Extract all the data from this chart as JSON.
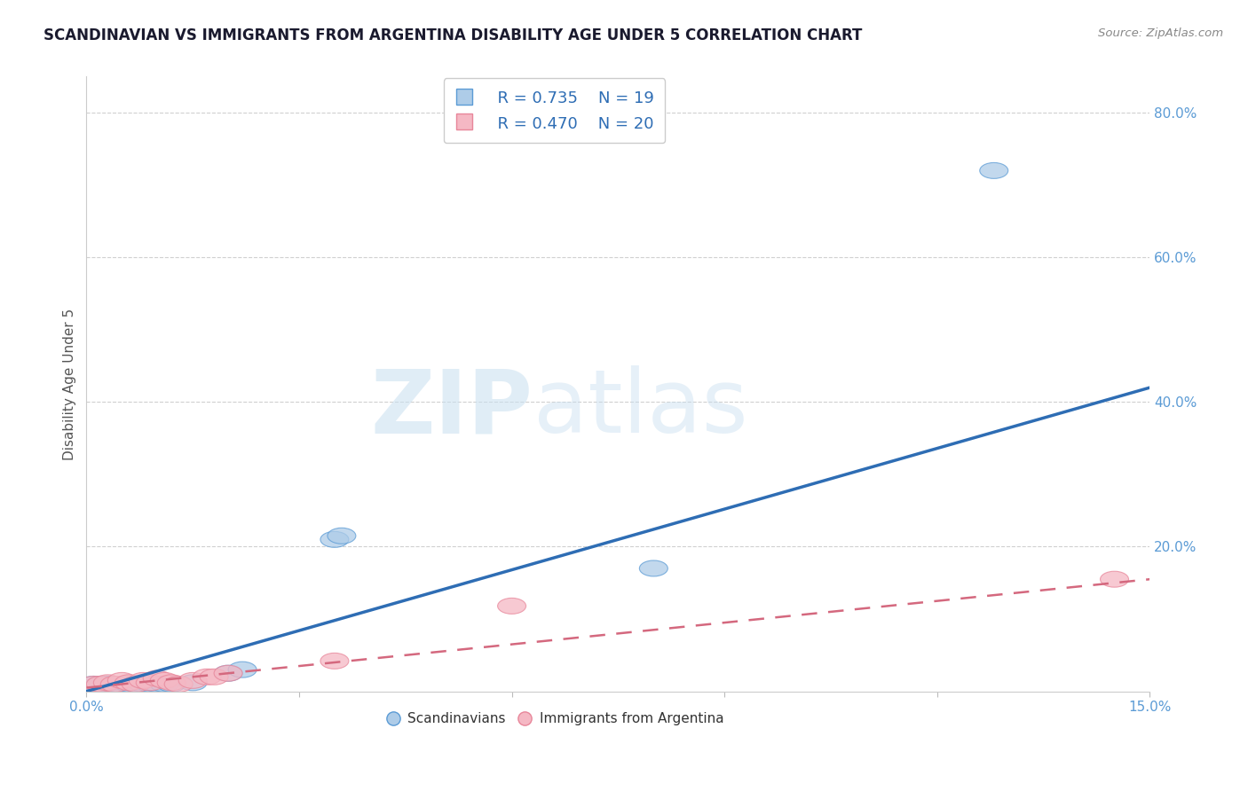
{
  "title": "SCANDINAVIAN VS IMMIGRANTS FROM ARGENTINA DISABILITY AGE UNDER 5 CORRELATION CHART",
  "source": "Source: ZipAtlas.com",
  "ylabel": "Disability Age Under 5",
  "xlim": [
    0.0,
    0.15
  ],
  "ylim": [
    0.0,
    0.85
  ],
  "ytick_labels_right": [
    "20.0%",
    "40.0%",
    "60.0%",
    "80.0%"
  ],
  "ytick_vals_right": [
    0.2,
    0.4,
    0.6,
    0.8
  ],
  "scandinavian_x": [
    0.001,
    0.002,
    0.003,
    0.004,
    0.005,
    0.006,
    0.007,
    0.008,
    0.009,
    0.01,
    0.011,
    0.012,
    0.015,
    0.02,
    0.022,
    0.035,
    0.036,
    0.08,
    0.128
  ],
  "scandinavian_y": [
    0.01,
    0.01,
    0.01,
    0.008,
    0.008,
    0.01,
    0.01,
    0.01,
    0.01,
    0.01,
    0.01,
    0.01,
    0.012,
    0.025,
    0.03,
    0.21,
    0.215,
    0.17,
    0.72
  ],
  "argentina_x": [
    0.001,
    0.002,
    0.003,
    0.004,
    0.005,
    0.006,
    0.007,
    0.008,
    0.009,
    0.01,
    0.011,
    0.012,
    0.013,
    0.015,
    0.017,
    0.018,
    0.02,
    0.035,
    0.06,
    0.145
  ],
  "argentina_y": [
    0.01,
    0.01,
    0.012,
    0.01,
    0.015,
    0.012,
    0.01,
    0.015,
    0.012,
    0.018,
    0.015,
    0.012,
    0.01,
    0.015,
    0.02,
    0.02,
    0.025,
    0.042,
    0.118,
    0.155
  ],
  "blue_line_x": [
    0.0,
    0.15
  ],
  "blue_line_y": [
    0.0,
    0.42
  ],
  "pink_line_x": [
    0.0,
    0.15
  ],
  "pink_line_y": [
    0.005,
    0.155
  ],
  "blue_color": "#aecce8",
  "pink_color": "#f5b8c4",
  "blue_edge_color": "#5b9bd5",
  "pink_edge_color": "#e8869a",
  "blue_line_color": "#2e6db4",
  "pink_line_color": "#d4687e",
  "legend_R1": "R = 0.735",
  "legend_N1": "N = 19",
  "legend_R2": "R = 0.470",
  "legend_N2": "N = 20",
  "watermark_zip": "ZIP",
  "watermark_atlas": "atlas",
  "background_color": "#ffffff",
  "grid_color": "#d0d0d0",
  "title_color": "#1a1a2e",
  "axis_tick_color": "#5b9bd5",
  "ylabel_color": "#555555",
  "source_color": "#888888"
}
